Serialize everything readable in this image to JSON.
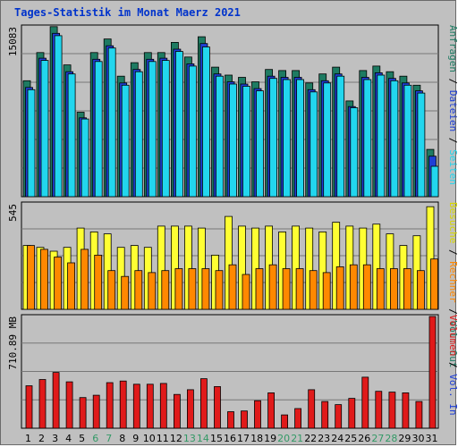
{
  "chart_data": {
    "type": "bar",
    "title": "Tages-Statistik im Monat Maerz 2021",
    "categories": [
      "1",
      "2",
      "3",
      "4",
      "5",
      "6",
      "7",
      "8",
      "9",
      "10",
      "11",
      "12",
      "13",
      "14",
      "15",
      "16",
      "17",
      "18",
      "19",
      "20",
      "21",
      "22",
      "23",
      "24",
      "25",
      "26",
      "27",
      "28",
      "29",
      "30",
      "31"
    ],
    "weekend_days": [
      "6",
      "7",
      "13",
      "14",
      "20",
      "21",
      "27",
      "28"
    ],
    "colors": {
      "anfragen": "#1e7b62",
      "dateien": "#1f3fd6",
      "seiten": "#22d6ee",
      "besuche": "#ffff33",
      "rechner": "#ff8800",
      "volumen": "#e01a1a",
      "weekend_label": "#339966",
      "weekday_label": "#000000",
      "panel": "#c0c0c0",
      "grid": "#777777"
    },
    "panels": [
      {
        "name": "hits",
        "ymax_label": "15083",
        "ymax": 15083,
        "series": [
          {
            "name": "Anfragen",
            "color": "#1e7b62",
            "values": [
              10300,
              12800,
              15100,
              11700,
              7500,
              12800,
              14000,
              10700,
              11900,
              12800,
              12800,
              13700,
              12400,
              14200,
              11500,
              10800,
              10600,
              10200,
              11300,
              11200,
              11200,
              10100,
              10900,
              11500,
              8500,
              11200,
              11600,
              11100,
              10700,
              9900,
              4200
            ]
          },
          {
            "name": "Dateien",
            "color": "#1f3fd6",
            "values": [
              9700,
              12300,
              14500,
              11100,
              7000,
              12200,
              13400,
              10100,
              11300,
              12200,
              12300,
              13100,
              11800,
              13600,
              10900,
              10200,
              10000,
              9600,
              10700,
              10600,
              10600,
              9500,
              10300,
              10900,
              8000,
              10600,
              11000,
              10500,
              10100,
              9400,
              3600
            ]
          },
          {
            "name": "Seiten",
            "color": "#22d6ee",
            "values": [
              9500,
              12100,
              14300,
              10900,
              6900,
              12000,
              13200,
              9900,
              11100,
              12000,
              12100,
              12900,
              11600,
              13300,
              10700,
              10000,
              9800,
              9400,
              10500,
              10400,
              10400,
              9300,
              10100,
              10700,
              7900,
              10400,
              10800,
              10300,
              9900,
              9200,
              2700
            ]
          }
        ]
      },
      {
        "name": "visits",
        "ymax_label": "545",
        "ymax": 545,
        "series": [
          {
            "name": "Besuche",
            "color": "#ffff33",
            "values": [
              330,
              320,
              300,
              320,
              420,
              400,
              390,
              320,
              330,
              320,
              430,
              430,
              430,
              420,
              280,
              480,
              430,
              420,
              430,
              400,
              430,
              420,
              400,
              450,
              430,
              420,
              440,
              390,
              330,
              380,
              530
            ]
          },
          {
            "name": "Rechner",
            "color": "#ff8800",
            "values": [
              330,
              310,
              270,
              240,
              310,
              280,
              200,
              170,
              200,
              190,
              200,
              210,
              210,
              210,
              200,
              230,
              180,
              210,
              230,
              210,
              210,
              200,
              190,
              220,
              230,
              230,
              210,
              210,
              210,
              200,
              260
            ]
          }
        ]
      },
      {
        "name": "volume",
        "ymax_label": "710.89 MB",
        "ymax": 710.89,
        "series": [
          {
            "name": "Volumen",
            "color": "#e01a1a",
            "values": [
              270,
              310,
              355,
              295,
              195,
              210,
              290,
              300,
              280,
              280,
              285,
              215,
              245,
              315,
              265,
              105,
              110,
              175,
              225,
              85,
              125,
              245,
              170,
              150,
              190,
              325,
              235,
              230,
              225,
              170,
              710.89
            ]
          }
        ]
      }
    ],
    "right_legends": [
      {
        "panel": "hits",
        "items": [
          {
            "text": "Anfragen",
            "color": "#1e7b62"
          },
          {
            "text": " / ",
            "color": "#000000"
          },
          {
            "text": "Dateien",
            "color": "#1f3fd6"
          },
          {
            "text": " / ",
            "color": "#000000"
          },
          {
            "text": "Seiten",
            "color": "#22d6ee"
          }
        ]
      },
      {
        "panel": "visits",
        "items": [
          {
            "text": "Besuche",
            "color": "#d8d800"
          },
          {
            "text": " / ",
            "color": "#000000"
          },
          {
            "text": "Rechner",
            "color": "#ff8800"
          },
          {
            "text": " / ",
            "color": "#000000"
          },
          {
            "text": "Vol. Out",
            "color": "#1e7b62"
          }
        ]
      },
      {
        "panel": "volume",
        "items": [
          {
            "text": "Volumen",
            "color": "#e01a1a"
          },
          {
            "text": " / ",
            "color": "#000000"
          },
          {
            "text": "Vol. In",
            "color": "#1f3fd6"
          }
        ]
      }
    ]
  }
}
